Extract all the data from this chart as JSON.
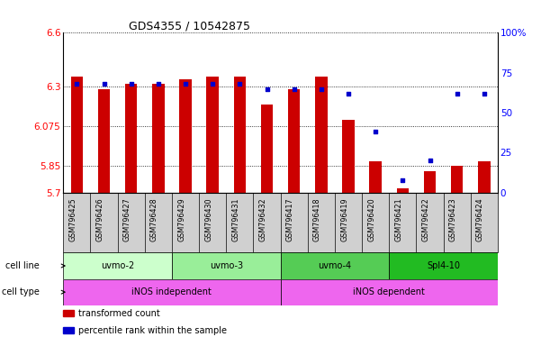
{
  "title": "GDS4355 / 10542875",
  "samples": [
    "GSM796425",
    "GSM796426",
    "GSM796427",
    "GSM796428",
    "GSM796429",
    "GSM796430",
    "GSM796431",
    "GSM796432",
    "GSM796417",
    "GSM796418",
    "GSM796419",
    "GSM796420",
    "GSM796421",
    "GSM796422",
    "GSM796423",
    "GSM796424"
  ],
  "bar_values": [
    6.355,
    6.283,
    6.312,
    6.312,
    6.338,
    6.352,
    6.352,
    6.195,
    6.283,
    6.355,
    6.112,
    5.878,
    5.722,
    5.822,
    5.852,
    5.875
  ],
  "percentile_values": [
    68,
    68,
    68,
    68,
    68,
    68,
    68,
    65,
    65,
    65,
    62,
    38,
    8,
    20,
    62,
    62
  ],
  "ylim_left": [
    5.7,
    6.6
  ],
  "yticks_left": [
    5.7,
    5.85,
    6.075,
    6.3,
    6.6
  ],
  "ylim_right": [
    0,
    100
  ],
  "yticks_right": [
    0,
    25,
    50,
    75,
    100
  ],
  "bar_color": "#cc0000",
  "dot_color": "#0000cc",
  "bar_width": 0.45,
  "cell_lines": [
    {
      "label": "uvmo-2",
      "start": 0,
      "end": 4,
      "color": "#ccffcc"
    },
    {
      "label": "uvmo-3",
      "start": 4,
      "end": 8,
      "color": "#99ee99"
    },
    {
      "label": "uvmo-4",
      "start": 8,
      "end": 12,
      "color": "#55cc55"
    },
    {
      "label": "Spl4-10",
      "start": 12,
      "end": 16,
      "color": "#22bb22"
    }
  ],
  "cell_types": [
    {
      "label": "iNOS independent",
      "start": 0,
      "end": 8,
      "color": "#ee66ee"
    },
    {
      "label": "iNOS dependent",
      "start": 8,
      "end": 16,
      "color": "#ee66ee"
    }
  ],
  "legend_items": [
    {
      "color": "#cc0000",
      "label": "transformed count"
    },
    {
      "color": "#0000cc",
      "label": "percentile rank within the sample"
    }
  ],
  "sample_box_color": "#d0d0d0",
  "title_fontsize": 9,
  "axis_fontsize": 7.5,
  "label_fontsize": 7,
  "sample_fontsize": 5.8
}
